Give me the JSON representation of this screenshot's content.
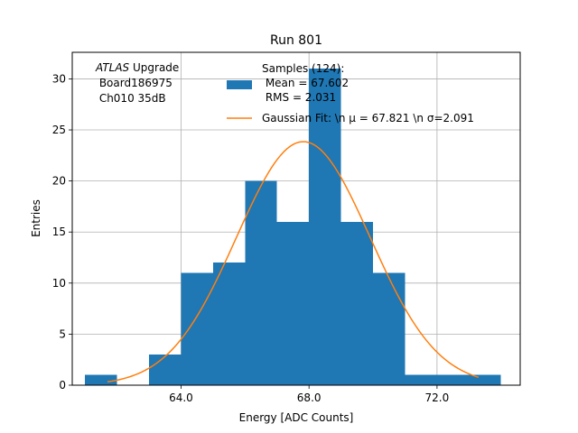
{
  "chart_data": {
    "type": "bar",
    "title": "Run 801",
    "xlabel": "Energy [ADC Counts]",
    "ylabel": "Entries",
    "xlim": [
      60.6,
      74.6
    ],
    "ylim": [
      0,
      32.6
    ],
    "grid": true,
    "xticks": [
      64.0,
      68.0,
      72.0
    ],
    "xtick_labels": [
      "64.0",
      "68.0",
      "72.0"
    ],
    "yticks": [
      0,
      5,
      10,
      15,
      20,
      25,
      30
    ],
    "ytick_labels": [
      "0",
      "5",
      "10",
      "15",
      "20",
      "25",
      "30"
    ],
    "histogram": {
      "name": "Samples (124)",
      "bin_edges": [
        61.0,
        62.0,
        63.0,
        64.0,
        65.0,
        66.0,
        67.0,
        68.0,
        69.0,
        70.0,
        71.0,
        72.0,
        73.0,
        74.0
      ],
      "counts": [
        1,
        0,
        3,
        11,
        12,
        20,
        16,
        31,
        16,
        11,
        1,
        1,
        1
      ],
      "color": "#1f77b4"
    },
    "fit": {
      "name": "Gaussian Fit",
      "mu": 67.821,
      "sigma": 2.091,
      "amplitude": 23.85,
      "x_range": [
        61.7,
        73.3
      ],
      "color": "#ff7f0e"
    },
    "legend_position": "upper-center",
    "legend": {
      "hist_lines": [
        "Samples (124):",
        " Mean = 67.602",
        " RMS = 2.031"
      ],
      "fit_label": "Gaussian Fit: \\n μ = 67.821 \\n σ=2.091"
    },
    "annotation": {
      "line1_italic": "ATLAS",
      "line1_rest": " Upgrade",
      "line2": " Board186975",
      "line3": " Ch010 35dB"
    }
  }
}
